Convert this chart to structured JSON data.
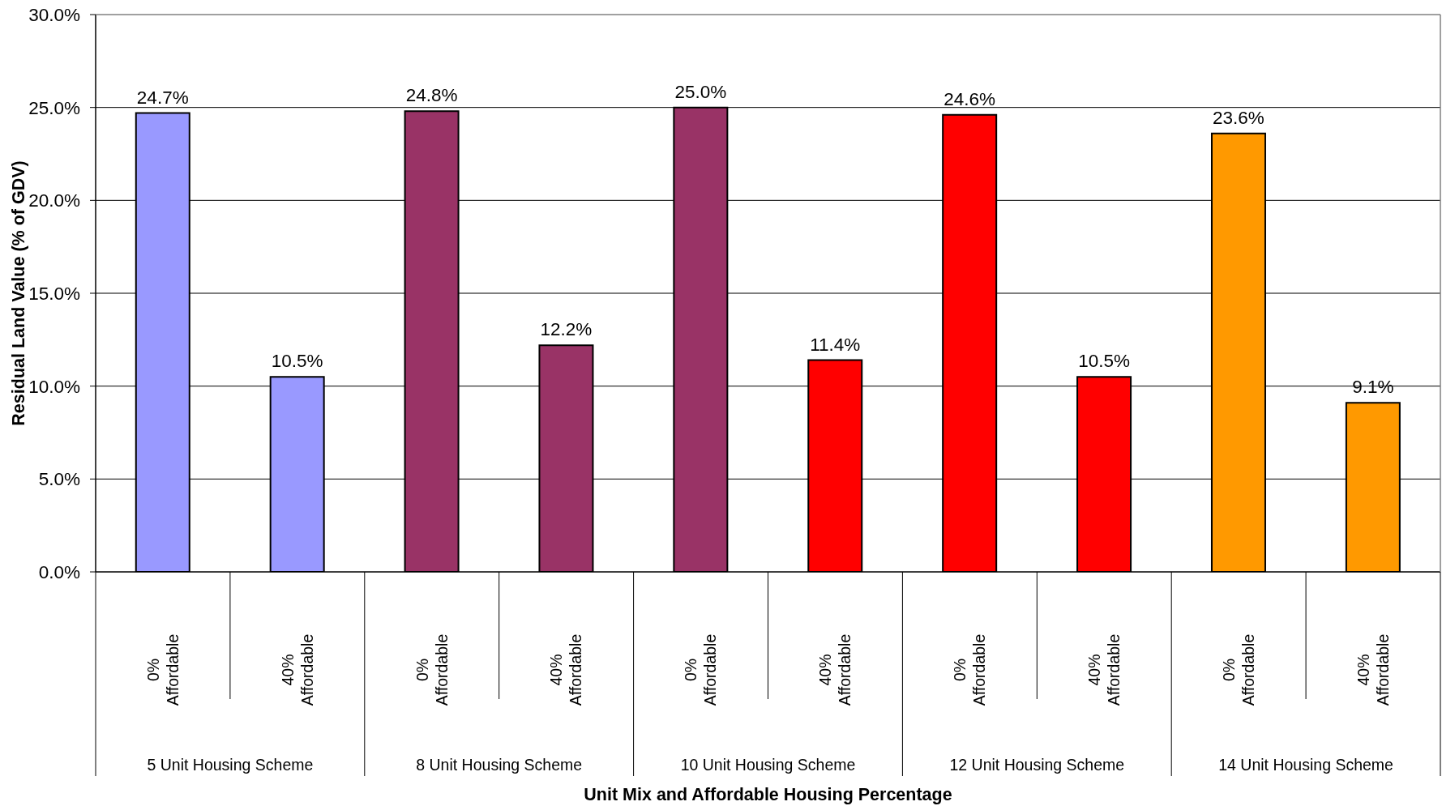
{
  "chart_data": {
    "type": "bar",
    "xlabel": "Unit Mix and Affordable Housing Percentage",
    "ylabel": "Residual Land Value (% of GDV)",
    "categories": [
      "0% Affordable",
      "40% Affordable",
      "0% Affordable",
      "40% Affordable",
      "0% Affordable",
      "40% Affordable",
      "0% Affordable",
      "40% Affordable",
      "0% Affordable",
      "40% Affordable"
    ],
    "values": [
      24.7,
      10.5,
      24.8,
      12.2,
      25.0,
      11.4,
      24.6,
      10.5,
      23.6,
      9.1
    ],
    "colors": [
      "#9999ff",
      "#9999ff",
      "#993366",
      "#993366",
      "#993366",
      "#ff0000",
      "#ff0000",
      "#ff0000",
      "#ff9900",
      "#ff9900"
    ],
    "value_labels": [
      "24.7%",
      "10.5%",
      "24.8%",
      "12.2%",
      "25.0%",
      "11.4%",
      "24.6%",
      "10.5%",
      "23.6%",
      "9.1%"
    ],
    "ylim": [
      0,
      30
    ],
    "yticks": [
      {
        "value": 0,
        "label": "0.0%"
      },
      {
        "value": 5,
        "label": "5.0%"
      },
      {
        "value": 10,
        "label": "10.0%"
      },
      {
        "value": 15,
        "label": "15.0%"
      },
      {
        "value": 20,
        "label": "20.0%"
      },
      {
        "value": 25,
        "label": "25.0%"
      },
      {
        "value": 30,
        "label": "30.0%"
      }
    ],
    "grid": "y",
    "annotations": [
      "5 Unit Housing Scheme",
      "8 Unit Housing Scheme",
      "10 Unit Housing Scheme",
      "12 Unit Housing Scheme",
      "14 Unit Housing Scheme"
    ]
  }
}
